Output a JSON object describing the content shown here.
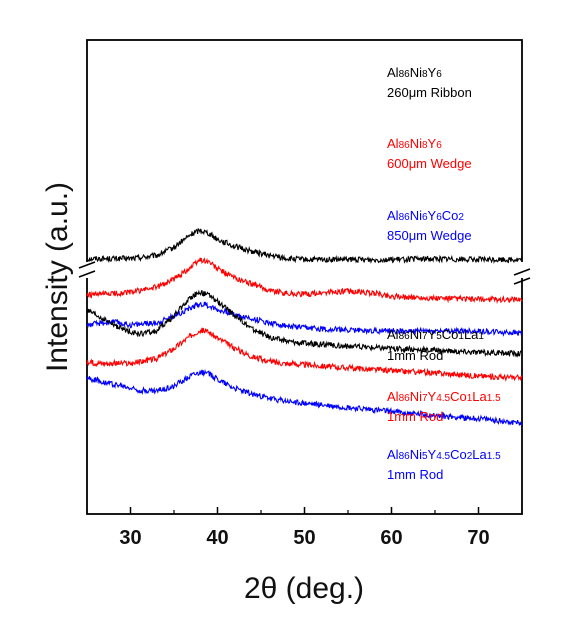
{
  "chart_data": {
    "type": "line",
    "xlabel": "2θ (deg.)",
    "ylabel": "Intensity (a.u.)",
    "xlim": [
      25,
      75
    ],
    "xticks": [
      30,
      40,
      50,
      60,
      70
    ],
    "y_axis_break": true,
    "grid": false,
    "legend": "inline labels beside each curve",
    "series": [
      {
        "name": "Al86Ni8Y6 260μm Ribbon",
        "label_line1_parts": [
          [
            "Al",
            "n"
          ],
          [
            "86",
            "s"
          ],
          [
            "Ni",
            "n"
          ],
          [
            "8",
            "s"
          ],
          [
            "Y",
            "n"
          ],
          [
            "6",
            "s"
          ]
        ],
        "label_line2": "260μm Ribbon",
        "color": "#000000",
        "x": [
          25,
          30,
          33,
          35,
          37,
          38,
          39,
          40,
          42,
          44,
          46,
          48,
          50,
          55,
          60,
          65,
          70,
          75
        ],
        "y": [
          11.9,
          11.9,
          12.2,
          13.0,
          14.3,
          14.7,
          14.4,
          13.8,
          13.1,
          12.6,
          12.2,
          11.9,
          11.8,
          11.8,
          11.8,
          11.9,
          11.8,
          11.8
        ]
      },
      {
        "name": "Al86Ni8Y6 600μm Wedge",
        "label_line1_parts": [
          [
            "Al",
            "n"
          ],
          [
            "86",
            "s"
          ],
          [
            "Ni",
            "n"
          ],
          [
            "8",
            "s"
          ],
          [
            "Y",
            "n"
          ],
          [
            "6",
            "s"
          ]
        ],
        "label_line2": "600μm Wedge",
        "color": "#ff0000",
        "x": [
          25,
          30,
          33,
          35,
          37,
          38,
          39,
          40,
          42,
          44,
          46,
          48,
          50,
          53,
          55,
          58,
          60,
          65,
          70,
          75
        ],
        "y": [
          8.3,
          8.6,
          9.1,
          9.9,
          11.1,
          11.8,
          11.6,
          10.9,
          10.0,
          9.4,
          8.8,
          8.5,
          8.4,
          8.6,
          8.7,
          8.5,
          8.2,
          8.0,
          7.9,
          7.9
        ]
      },
      {
        "name": "Al86Ni6Y6Co2 850μm Wedge",
        "label_line1_parts": [
          [
            "Al",
            "n"
          ],
          [
            "86",
            "s"
          ],
          [
            "Ni",
            "n"
          ],
          [
            "6",
            "s"
          ],
          [
            "Y",
            "n"
          ],
          [
            "6",
            "s"
          ],
          [
            "Co",
            "n"
          ],
          [
            "2",
            "s"
          ]
        ],
        "label_line2": "850μm Wedge",
        "color": "#0000ff",
        "x": [
          25,
          28,
          30,
          33,
          35,
          37,
          38,
          39,
          40,
          42,
          44,
          46,
          48,
          50,
          55,
          60,
          65,
          70,
          75
        ],
        "y": [
          5.4,
          5.7,
          5.4,
          5.6,
          6.3,
          7.1,
          7.5,
          7.3,
          6.9,
          6.4,
          6.0,
          5.6,
          5.3,
          5.1,
          4.9,
          4.8,
          4.8,
          4.8,
          4.6
        ]
      },
      {
        "name": "Al86Ni7Y5Co1La1 1mm Rod",
        "label_line1_parts": [
          [
            "Al",
            "n"
          ],
          [
            "86",
            "s"
          ],
          [
            "Ni",
            "n"
          ],
          [
            "7",
            "s"
          ],
          [
            "Y",
            "n"
          ],
          [
            "5",
            "s"
          ],
          [
            "Co",
            "n"
          ],
          [
            "1",
            "s"
          ],
          [
            "La",
            "n"
          ],
          [
            "1",
            "s"
          ]
        ],
        "label_line2": "1mm Rod",
        "color": "#000000",
        "x": [
          25,
          27,
          29,
          31,
          33,
          35,
          37,
          38,
          39,
          40,
          42,
          44,
          46,
          48,
          50,
          55,
          60,
          65,
          70,
          75
        ],
        "y": [
          6.8,
          5.9,
          5.0,
          4.5,
          4.8,
          6.3,
          8.2,
          8.6,
          8.3,
          7.7,
          6.3,
          5.0,
          4.2,
          3.8,
          3.6,
          3.3,
          3.1,
          2.9,
          2.7,
          2.6
        ]
      },
      {
        "name": "Al86Ni7Y4.5Co1La1.5 1mm Rod",
        "label_line1_parts": [
          [
            "Al",
            "n"
          ],
          [
            "86",
            "s"
          ],
          [
            "Ni",
            "n"
          ],
          [
            "7",
            "s"
          ],
          [
            "Y",
            "n"
          ],
          [
            "4.5",
            "s"
          ],
          [
            "Co",
            "n"
          ],
          [
            "1",
            "s"
          ],
          [
            "La",
            "n"
          ],
          [
            "1.5",
            "s"
          ]
        ],
        "label_line2": "1mm Rod",
        "color": "#ff0000",
        "x": [
          25,
          30,
          33,
          35,
          37,
          38,
          39,
          40,
          42,
          44,
          46,
          48,
          50,
          55,
          60,
          65,
          70,
          75
        ],
        "y": [
          1.7,
          1.6,
          2.1,
          3.1,
          4.4,
          4.9,
          4.7,
          4.1,
          3.1,
          2.3,
          1.8,
          1.6,
          1.5,
          1.2,
          0.9,
          0.7,
          0.4,
          0.2
        ]
      },
      {
        "name": "Al86Ni5Y4.5Co2La1.5 1mm Rod",
        "label_line1_parts": [
          [
            "Al",
            "n"
          ],
          [
            "86",
            "s"
          ],
          [
            "Ni",
            "n"
          ],
          [
            "5",
            "s"
          ],
          [
            "Y",
            "n"
          ],
          [
            "4.5",
            "s"
          ],
          [
            "Co",
            "n"
          ],
          [
            "2",
            "s"
          ],
          [
            "La",
            "n"
          ],
          [
            "1.5",
            "s"
          ]
        ],
        "label_line2": "1mm Rod",
        "color": "#0000ff",
        "x": [
          25,
          27,
          29,
          31,
          33,
          35,
          37,
          38,
          39,
          40,
          42,
          44,
          46,
          48,
          50,
          55,
          60,
          65,
          70,
          75
        ],
        "y": [
          0.2,
          -0.2,
          -0.6,
          -1.0,
          -1.1,
          -0.6,
          0.5,
          0.8,
          0.6,
          0.1,
          -0.8,
          -1.4,
          -1.8,
          -2.1,
          -2.3,
          -2.7,
          -3.1,
          -3.5,
          -3.8,
          -4.2
        ]
      }
    ]
  }
}
